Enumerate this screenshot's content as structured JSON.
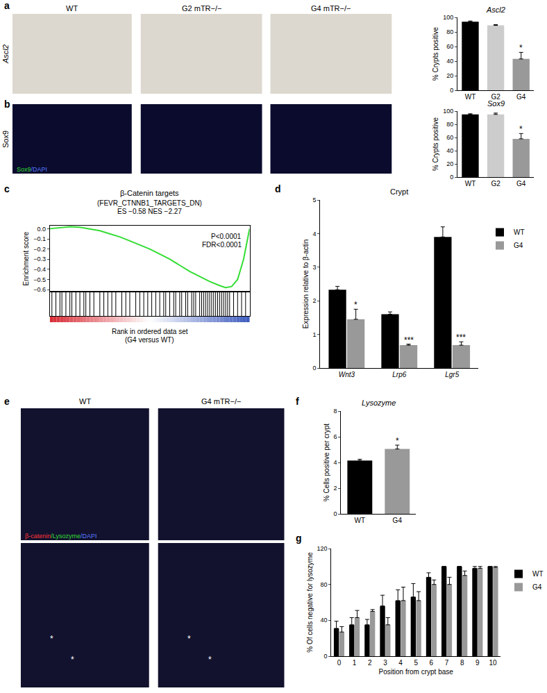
{
  "panel_labels": [
    "a",
    "b",
    "c",
    "d",
    "e",
    "f",
    "g"
  ],
  "images": {
    "a": {
      "row_label": "Ascl2",
      "columns": [
        "WT",
        "G2 mTR−/−",
        "G4 mTR−/−"
      ]
    },
    "b": {
      "row_label": "Sox9",
      "stain": [
        {
          "text": "Sox9",
          "color": "#33dd33"
        },
        {
          "text": "/DAPI",
          "color": "#5577ff"
        }
      ]
    },
    "e": {
      "columns": [
        "WT",
        "G4 mTR−/−"
      ],
      "stain": [
        {
          "text": "β-catenin",
          "color": "#ff3333"
        },
        {
          "text": "/Lysozyme",
          "color": "#33dd33"
        },
        {
          "text": "/DAPI",
          "color": "#5577ff"
        }
      ],
      "marker_text": "*"
    }
  },
  "chart_data": [
    {
      "type": "bar",
      "title": "Ascl2",
      "categories": [
        "WT",
        "G2",
        "G4"
      ],
      "values": [
        94,
        89,
        43
      ],
      "errors": [
        1,
        1,
        9
      ],
      "colors": [
        "#000000",
        "#cccccc",
        "#999999"
      ],
      "significance": [
        null,
        null,
        "*"
      ],
      "y_label": "% Crypts positive",
      "ylim": [
        0,
        100
      ],
      "yticks": [
        0,
        20,
        40,
        60,
        80,
        100
      ]
    },
    {
      "type": "bar",
      "title": "Sox9",
      "categories": [
        "WT",
        "G2",
        "G4"
      ],
      "values": [
        95,
        95,
        58
      ],
      "errors": [
        1,
        2,
        8
      ],
      "colors": [
        "#000000",
        "#cccccc",
        "#999999"
      ],
      "significance": [
        null,
        null,
        "*"
      ],
      "y_label": "% Crypts positive",
      "ylim": [
        0,
        100
      ],
      "yticks": [
        0,
        20,
        40,
        60,
        80,
        100
      ]
    },
    {
      "type": "line",
      "title": "β-Catenin targets",
      "subtitle": [
        "(FEVR_CTNNB1_TARGETS_DN)",
        "ES −0.58 NES −2.27"
      ],
      "annotations": [
        "P<0.0001",
        "FDR<0.0001"
      ],
      "x": [
        0,
        5,
        10,
        15,
        20,
        25,
        30,
        35,
        40,
        45,
        50,
        55,
        60,
        65,
        70,
        75,
        80,
        85,
        88,
        91,
        94,
        97,
        100
      ],
      "values": [
        0,
        0.01,
        0.02,
        0.015,
        0,
        -0.02,
        -0.05,
        -0.08,
        -0.12,
        -0.16,
        -0.2,
        -0.25,
        -0.3,
        -0.36,
        -0.42,
        -0.47,
        -0.52,
        -0.56,
        -0.58,
        -0.57,
        -0.5,
        -0.3,
        0
      ],
      "color": "#33dd33",
      "hits": [
        1,
        3,
        5,
        6,
        8,
        10,
        11,
        13,
        15,
        17,
        18,
        20,
        22,
        25,
        27,
        29,
        31,
        33,
        36,
        38,
        40,
        43,
        45,
        47,
        49,
        51,
        53,
        55,
        57,
        58,
        60,
        62,
        63,
        65,
        66,
        68,
        69,
        71,
        72,
        73,
        75,
        76,
        77,
        78,
        79,
        80,
        81,
        82,
        83,
        84,
        85,
        86,
        87,
        88,
        89,
        90,
        92,
        94,
        96,
        98
      ],
      "x_label": [
        "Rank in ordered data set",
        "(G4 versus WT)"
      ],
      "y_label": "Enrichment score",
      "xlim": [
        0,
        100
      ],
      "ylim": [
        -0.62,
        0.03
      ],
      "yticks": [
        {
          "value": -0.6,
          "label": "−0.6"
        },
        {
          "value": -0.5,
          "label": "−0.5"
        },
        {
          "value": -0.4,
          "label": "−0.4"
        },
        {
          "value": -0.3,
          "label": "−0.3"
        },
        {
          "value": -0.2,
          "label": "−0.2"
        },
        {
          "value": -0.1,
          "label": "−0.1"
        },
        {
          "value": 0,
          "label": "0.0"
        }
      ],
      "tick_labels": "y"
    },
    {
      "type": "bar",
      "title": "Crypt",
      "categories": [
        "Wnt3",
        "Lrp6",
        "Lgr5"
      ],
      "series": [
        {
          "name": "WT",
          "color": "#000000",
          "values": [
            2.33,
            1.6,
            3.9
          ],
          "errors": [
            0.1,
            0.07,
            0.3
          ]
        },
        {
          "name": "G4",
          "color": "#999999",
          "values": [
            1.45,
            0.68,
            0.68
          ],
          "errors": [
            0.3,
            0.03,
            0.1
          ],
          "significance": [
            "*",
            "***",
            "***"
          ]
        }
      ],
      "y_label": "Expression relative to β-actin",
      "ylim": [
        0,
        5
      ],
      "yticks": [
        0,
        1,
        2,
        3,
        4,
        5
      ],
      "legend": "right"
    },
    {
      "type": "bar",
      "title": "Lysozyme",
      "categories": [
        "WT",
        "G4"
      ],
      "values": [
        4.15,
        5.05
      ],
      "errors": [
        0.1,
        0.3
      ],
      "colors": [
        "#000000",
        "#999999"
      ],
      "significance": [
        null,
        "*"
      ],
      "y_label": "% Cells positive per crypt",
      "ylim": [
        0,
        8
      ],
      "yticks": [
        0,
        2,
        4,
        6,
        8
      ]
    },
    {
      "type": "bar",
      "categories": [
        "0",
        "1",
        "2",
        "3",
        "4",
        "5",
        "6",
        "7",
        "8",
        "9",
        "10"
      ],
      "series": [
        {
          "name": "WT",
          "color": "#000000",
          "values": [
            31,
            35,
            35,
            56,
            62,
            66,
            88,
            100,
            100,
            98,
            100
          ],
          "errors": [
            8,
            8,
            6,
            12,
            12,
            15,
            5,
            0,
            0,
            2,
            0
          ]
        },
        {
          "name": "G4",
          "color": "#999999",
          "values": [
            27,
            43,
            50,
            35,
            62,
            62,
            80,
            80,
            90,
            98,
            99
          ],
          "errors": [
            6,
            8,
            2,
            8,
            15,
            10,
            5,
            8,
            5,
            2,
            1
          ]
        }
      ],
      "x_label": "Position from crypt base",
      "y_label": "% Of cells negative for lysozyme",
      "ylim": [
        0,
        120
      ],
      "yticks": [
        0,
        40,
        80,
        120
      ],
      "legend": "right"
    }
  ]
}
